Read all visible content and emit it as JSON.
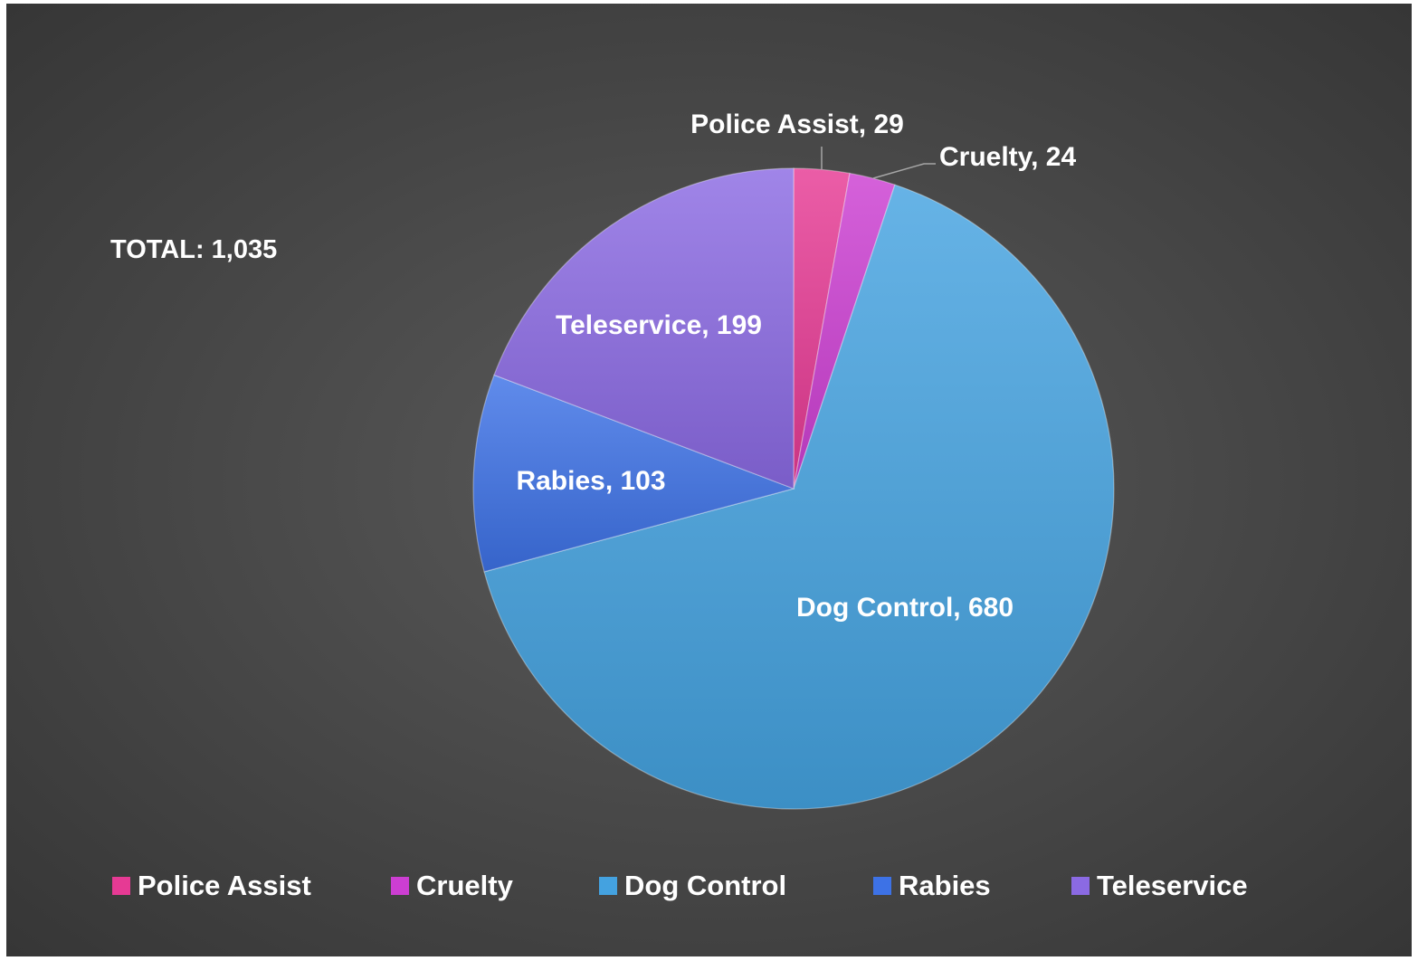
{
  "chart_data": {
    "type": "pie",
    "title": "",
    "total_label": "TOTAL:  1,035",
    "categories": [
      "Police Assist",
      "Cruelty",
      "Dog Control",
      "Rabies",
      "Teleservice"
    ],
    "values": [
      29,
      24,
      680,
      103,
      199
    ],
    "data_labels": [
      "Police Assist, 29",
      "Cruelty, 24",
      "Dog Control, 680",
      "Rabies, 103",
      "Teleservice, 199"
    ],
    "colors": [
      "#e63a94",
      "#cc3ed2",
      "#44a2e0",
      "#3d72e6",
      "#8b6ae3"
    ],
    "legend_position": "bottom",
    "start_angle": "12 o'clock, clockwise"
  },
  "legend": {
    "items": [
      {
        "label": "Police Assist",
        "color": "#e63a94"
      },
      {
        "label": "Cruelty",
        "color": "#cc3ed2"
      },
      {
        "label": "Dog Control",
        "color": "#44a2e0"
      },
      {
        "label": "Rabies",
        "color": "#3d72e6"
      },
      {
        "label": "Teleservice",
        "color": "#8b6ae3"
      }
    ]
  }
}
